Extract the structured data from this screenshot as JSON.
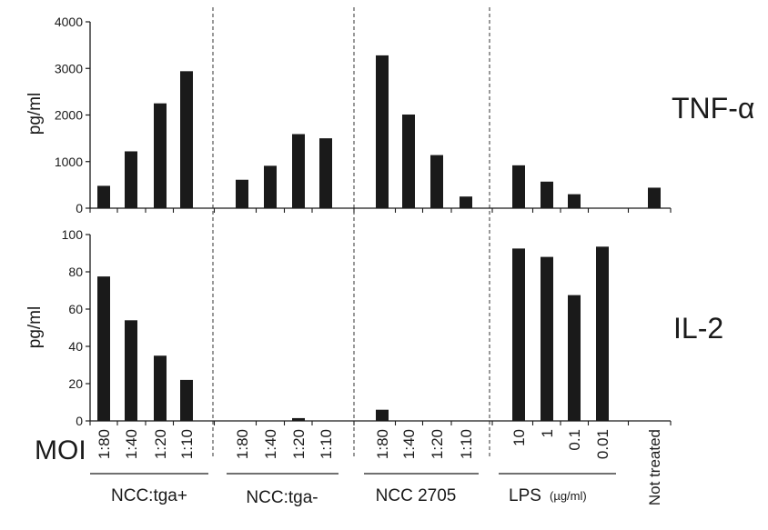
{
  "chart_data": [
    {
      "type": "bar",
      "panel_label": "TNF-α",
      "ylabel": "pg/ml",
      "ylim": [
        0,
        4000
      ],
      "yticks": [
        "0",
        "1000",
        "2000",
        "3000",
        "4000"
      ],
      "categories": [
        "1:80",
        "1:40",
        "1:20",
        "1:10",
        "1:80",
        "1:40",
        "1:20",
        "1:10",
        "1:80",
        "1:40",
        "1:20",
        "1:10",
        "10",
        "1",
        "0.1",
        "0.01",
        "Not treated"
      ],
      "values": [
        480,
        1220,
        2250,
        2940,
        610,
        910,
        1590,
        1500,
        3280,
        2010,
        1140,
        250,
        920,
        570,
        300,
        null,
        440
      ]
    },
    {
      "type": "bar",
      "panel_label": "IL-2",
      "ylabel": "pg/ml",
      "ylim": [
        0,
        100
      ],
      "yticks": [
        "0",
        "20",
        "40",
        "60",
        "80",
        "100"
      ],
      "categories": [
        "1:80",
        "1:40",
        "1:20",
        "1:10",
        "1:80",
        "1:40",
        "1:20",
        "1:10",
        "1:80",
        "1:40",
        "1:20",
        "1:10",
        "10",
        "1",
        "0.1",
        "0.01",
        "Not treated"
      ],
      "values": [
        77.5,
        54,
        35,
        22,
        0,
        0,
        1.5,
        0,
        6,
        0,
        0,
        0,
        92.5,
        88,
        67.5,
        93.5,
        null
      ]
    }
  ],
  "xaxis": {
    "moi_label": "MOI",
    "groups": [
      {
        "label": "NCC:tga+"
      },
      {
        "label": "NCC:tga-"
      },
      {
        "label": "NCC 2705"
      },
      {
        "label": "LPS",
        "unit": "(µg/ml)"
      }
    ]
  },
  "colors": {
    "bar": "#1a1a1a",
    "axis": "#1a1a1a",
    "separator": "#333333"
  }
}
